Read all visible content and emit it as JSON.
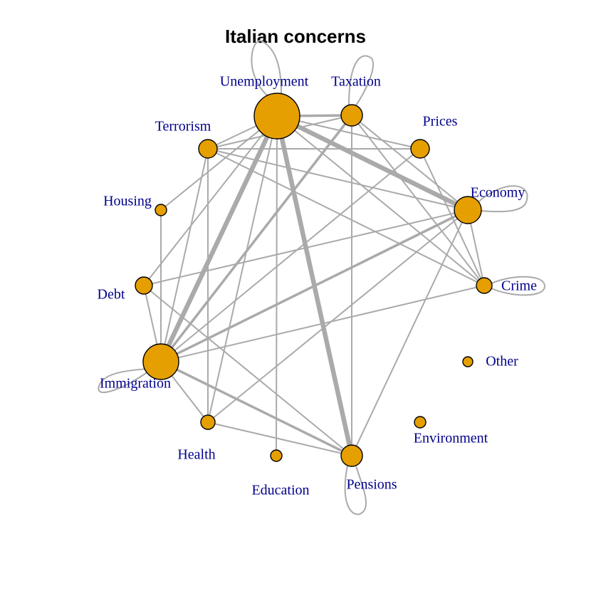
{
  "title": "Italian concerns",
  "colors": {
    "node": "#E69F00",
    "edge": "#aaaaaa",
    "label": "#00008B",
    "title": "#000000"
  },
  "nodes": [
    {
      "id": "unemployment",
      "label": "Unemployment"
    },
    {
      "id": "taxation",
      "label": "Taxation"
    },
    {
      "id": "prices",
      "label": "Prices"
    },
    {
      "id": "economy",
      "label": "Economy"
    },
    {
      "id": "crime",
      "label": "Crime"
    },
    {
      "id": "other",
      "label": "Other"
    },
    {
      "id": "environment",
      "label": "Environment"
    },
    {
      "id": "pensions",
      "label": "Pensions"
    },
    {
      "id": "education",
      "label": "Education"
    },
    {
      "id": "health",
      "label": "Health"
    },
    {
      "id": "immigration",
      "label": "Immigration"
    },
    {
      "id": "debt",
      "label": "Debt"
    },
    {
      "id": "housing",
      "label": "Housing"
    },
    {
      "id": "terrorism",
      "label": "Terrorism"
    }
  ],
  "edges": [
    [
      "unemployment",
      "immigration",
      "heavy"
    ],
    [
      "unemployment",
      "economy",
      "heavy"
    ],
    [
      "unemployment",
      "pensions",
      "heavy"
    ],
    [
      "unemployment",
      "taxation",
      "medium"
    ],
    [
      "immigration",
      "economy",
      "medium"
    ],
    [
      "immigration",
      "pensions",
      "medium"
    ],
    [
      "immigration",
      "taxation",
      "medium"
    ],
    [
      "unemployment",
      "prices",
      "light"
    ],
    [
      "unemployment",
      "terrorism",
      "light"
    ],
    [
      "unemployment",
      "crime",
      "light"
    ],
    [
      "unemployment",
      "housing",
      "light"
    ],
    [
      "unemployment",
      "debt",
      "light"
    ],
    [
      "unemployment",
      "health",
      "light"
    ],
    [
      "unemployment",
      "education",
      "light"
    ],
    [
      "taxation",
      "terrorism",
      "light"
    ],
    [
      "taxation",
      "economy",
      "light"
    ],
    [
      "taxation",
      "crime",
      "light"
    ],
    [
      "taxation",
      "pensions",
      "light"
    ],
    [
      "terrorism",
      "prices",
      "light"
    ],
    [
      "terrorism",
      "economy",
      "light"
    ],
    [
      "terrorism",
      "crime",
      "light"
    ],
    [
      "terrorism",
      "immigration",
      "light"
    ],
    [
      "terrorism",
      "health",
      "light"
    ],
    [
      "economy",
      "debt",
      "light"
    ],
    [
      "economy",
      "crime",
      "light"
    ],
    [
      "economy",
      "health",
      "light"
    ],
    [
      "economy",
      "pensions",
      "light"
    ],
    [
      "prices",
      "immigration",
      "light"
    ],
    [
      "prices",
      "crime",
      "light"
    ],
    [
      "crime",
      "immigration",
      "light"
    ],
    [
      "debt",
      "immigration",
      "light"
    ],
    [
      "debt",
      "pensions",
      "light"
    ],
    [
      "immigration",
      "health",
      "light"
    ],
    [
      "health",
      "pensions",
      "light"
    ],
    [
      "immigration",
      "housing",
      "light"
    ]
  ],
  "self_loops": [
    "unemployment",
    "taxation",
    "economy",
    "crime",
    "pensions",
    "immigration"
  ]
}
